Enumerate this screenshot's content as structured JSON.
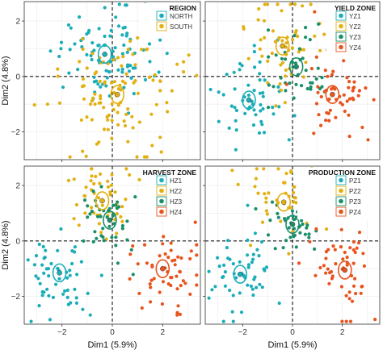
{
  "figure": {
    "xlabel": "Dim1 (5.9%)",
    "ylabel": "Dim2 (4.8%)"
  },
  "chart_data": [
    {
      "type": "scatter",
      "panel_position": "top-left",
      "legend_title": "REGION",
      "legend_position": "top-right",
      "xlabel": "Dim1 (5.9%)",
      "ylabel": "Dim2 (4.8%)",
      "xlim": [
        -3.5,
        3.5
      ],
      "ylim": [
        -3.0,
        2.7
      ],
      "x_ticks": [
        -2,
        0,
        2
      ],
      "y_ticks": [
        -2,
        0,
        2
      ],
      "grid": true,
      "series": [
        {
          "name": "NORTH",
          "color": "#1aadb8",
          "centroid": [
            -0.3,
            0.8
          ],
          "spread": [
            0.95,
            0.85
          ],
          "count": 95,
          "centroid_box": "#1aadb8"
        },
        {
          "name": "SOUTH",
          "color": "#e3b012",
          "centroid": [
            0.2,
            -0.65
          ],
          "spread": [
            1.2,
            1.1
          ],
          "count": 110
        }
      ]
    },
    {
      "type": "scatter",
      "panel_position": "top-right",
      "legend_title": "YIELD ZONE",
      "legend_position": "top-right",
      "xlabel": "Dim1 (5.9%)",
      "ylabel": "Dim2 (4.8%)",
      "xlim": [
        -3.5,
        3.5
      ],
      "ylim": [
        -3.0,
        2.7
      ],
      "x_ticks": [
        -2,
        0,
        2
      ],
      "y_ticks": [
        -2,
        0,
        2
      ],
      "grid": true,
      "series": [
        {
          "name": "YZ1",
          "color": "#1aadb8",
          "centroid": [
            -1.75,
            -0.85
          ],
          "spread": [
            0.7,
            0.9
          ],
          "count": 55
        },
        {
          "name": "YZ2",
          "color": "#e3b012",
          "centroid": [
            -0.4,
            1.1
          ],
          "spread": [
            0.8,
            0.8
          ],
          "count": 55
        },
        {
          "name": "YZ3",
          "color": "#1a8f6a",
          "centroid": [
            0.15,
            0.35
          ],
          "spread": [
            0.6,
            0.7
          ],
          "count": 40
        },
        {
          "name": "YZ4",
          "color": "#e8541e",
          "centroid": [
            1.6,
            -0.65
          ],
          "spread": [
            0.85,
            0.9
          ],
          "count": 55
        }
      ]
    },
    {
      "type": "scatter",
      "panel_position": "bottom-left",
      "legend_title": "HARVEST ZONE",
      "legend_position": "top-right",
      "xlabel": "Dim1 (5.9%)",
      "ylabel": "Dim2 (4.8%)",
      "xlim": [
        -3.5,
        3.5
      ],
      "ylim": [
        -3.0,
        2.7
      ],
      "x_ticks": [
        -2,
        0,
        2
      ],
      "y_ticks": [
        -2,
        0,
        2
      ],
      "grid": true,
      "series": [
        {
          "name": "HZ1",
          "color": "#1aadb8",
          "centroid": [
            -2.1,
            -1.15
          ],
          "spread": [
            0.75,
            0.85
          ],
          "count": 55
        },
        {
          "name": "HZ2",
          "color": "#e3b012",
          "centroid": [
            -0.4,
            1.45
          ],
          "spread": [
            0.7,
            0.7
          ],
          "count": 50
        },
        {
          "name": "HZ3",
          "color": "#1a8f6a",
          "centroid": [
            -0.1,
            0.75
          ],
          "spread": [
            0.55,
            0.6
          ],
          "count": 45
        },
        {
          "name": "HZ4",
          "color": "#e8541e",
          "centroid": [
            2.0,
            -1.0
          ],
          "spread": [
            0.75,
            0.8
          ],
          "count": 55
        }
      ]
    },
    {
      "type": "scatter",
      "panel_position": "bottom-right",
      "legend_title": "PRODUCTION ZONE",
      "legend_position": "top-right",
      "xlabel": "Dim1 (5.9%)",
      "ylabel": "Dim2 (4.8%)",
      "xlim": [
        -3.5,
        3.5
      ],
      "ylim": [
        -3.0,
        2.7
      ],
      "x_ticks": [
        -2,
        0,
        2
      ],
      "y_ticks": [
        -2,
        0,
        2
      ],
      "grid": true,
      "series": [
        {
          "name": "PZ1",
          "color": "#1aadb8",
          "centroid": [
            -2.1,
            -1.2
          ],
          "spread": [
            0.75,
            0.85
          ],
          "count": 55
        },
        {
          "name": "PZ2",
          "color": "#e3b012",
          "centroid": [
            -0.35,
            1.4
          ],
          "spread": [
            0.7,
            0.7
          ],
          "count": 50
        },
        {
          "name": "PZ3",
          "color": "#1a8f6a",
          "centroid": [
            0.0,
            0.6
          ],
          "spread": [
            0.55,
            0.6
          ],
          "count": 45
        },
        {
          "name": "PZ4",
          "color": "#e8541e",
          "centroid": [
            2.1,
            -1.05
          ],
          "spread": [
            0.75,
            0.8
          ],
          "count": 55
        }
      ]
    }
  ]
}
